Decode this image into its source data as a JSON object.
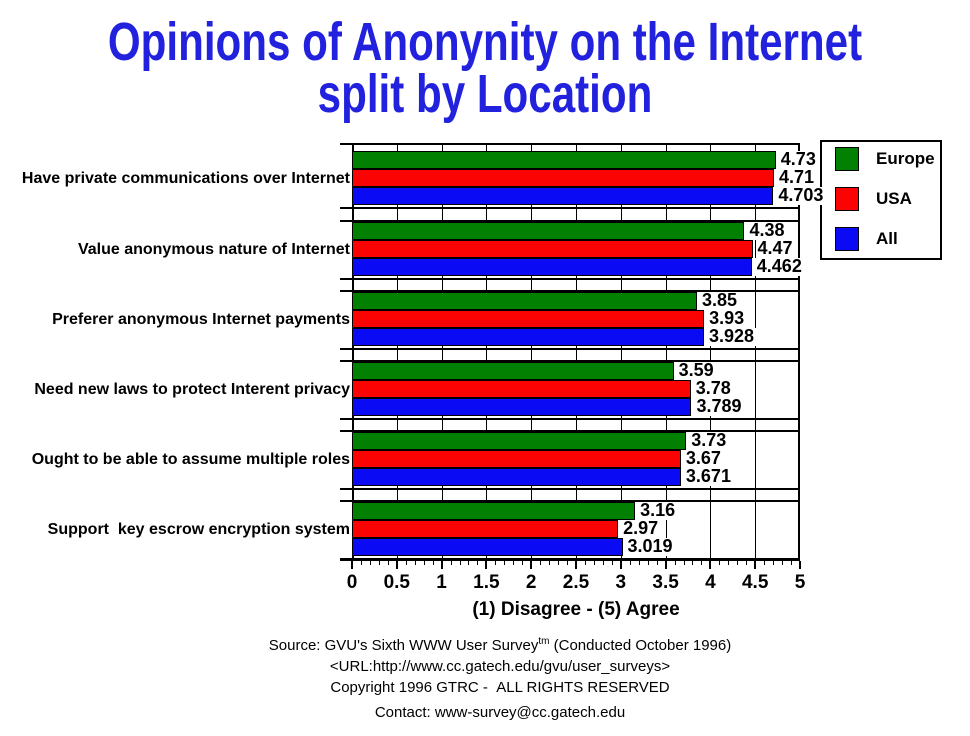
{
  "title": {
    "line1": "Opinions of Anonynity on the Internet",
    "line2": "split by Location"
  },
  "chart_data": {
    "type": "bar",
    "orientation": "horizontal",
    "title": "Opinions of Anonynity on the Internet split by Location",
    "categories": [
      "Have private communications over Internet",
      "Value anonymous nature of Internet",
      "Preferer anonymous Internet payments",
      "Need new laws to protect Interent privacy",
      "Ought to be able to assume multiple roles",
      "Support  key escrow encryption system"
    ],
    "series": [
      {
        "name": "Europe",
        "color": "#028002",
        "values": [
          4.73,
          4.38,
          3.85,
          3.59,
          3.73,
          3.16
        ],
        "value_labels": [
          "4.73",
          "4.38",
          "3.85",
          "3.59",
          "3.73",
          "3.16"
        ]
      },
      {
        "name": "USA",
        "color": "#FB0303",
        "values": [
          4.71,
          4.47,
          3.93,
          3.78,
          3.67,
          2.97
        ],
        "value_labels": [
          "4.71",
          "4.47",
          "3.93",
          "3.78",
          "3.67",
          "2.97"
        ]
      },
      {
        "name": "All",
        "color": "#0A0AF5",
        "values": [
          4.703,
          4.462,
          3.928,
          3.789,
          3.671,
          3.019
        ],
        "value_labels": [
          "4.703",
          "4.462",
          "3.928",
          "3.789",
          "3.671",
          "3.019"
        ]
      }
    ],
    "xlabel": "(1) Disagree - (5) Agree",
    "xlim": [
      0,
      5
    ],
    "xticks": [
      "0",
      "0.5",
      "1",
      "1.5",
      "2",
      "2.5",
      "3",
      "3.5",
      "4",
      "4.5",
      "5"
    ],
    "minor_tick_step": 0.1,
    "grid": {
      "vertical_major": true,
      "interval": 0.5
    },
    "legend_position": "outside-top-right",
    "value_labels_shown": true
  },
  "footer": {
    "source_prefix": "Source: GVU's Sixth WWW User Survey",
    "source_sup": "tm",
    "source_suffix": " (Conducted October 1996)",
    "url": "<URL:http://www.cc.gatech.edu/gvu/user_surveys>",
    "copyright": "Copyright 1996 GTRC -  ALL RIGHTS RESERVED",
    "contact": "Contact: www-survey@cc.gatech.edu"
  }
}
